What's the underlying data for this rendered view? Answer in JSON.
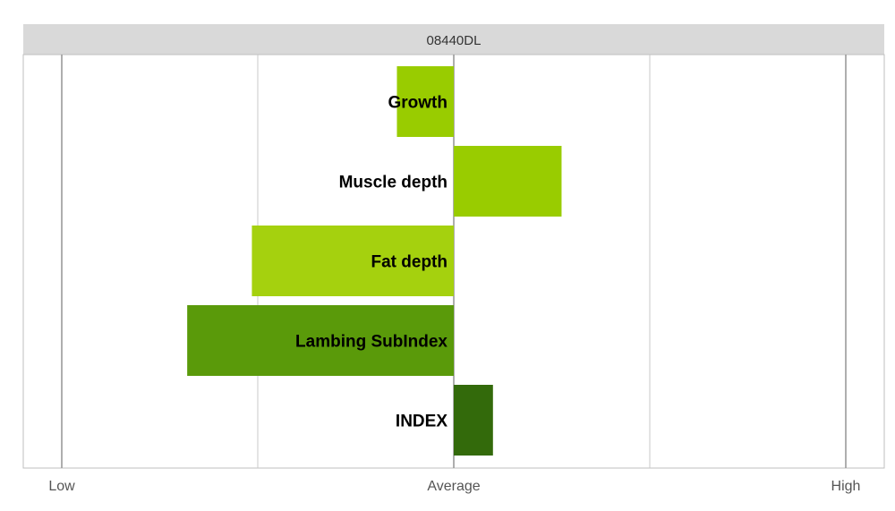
{
  "chart_data": {
    "type": "bar",
    "orientation": "horizontal",
    "title": "08440DL",
    "categories": [
      "Growth",
      "Muscle depth",
      "Fat depth",
      "Lambing SubIndex",
      "INDEX"
    ],
    "values": [
      -0.29,
      0.55,
      -1.03,
      -1.36,
      0.2
    ],
    "xlim": [
      -2,
      2
    ],
    "x_tick_values": [
      -2,
      0,
      2
    ],
    "x_tick_labels": [
      "Low",
      "Average",
      "High"
    ],
    "grid": true,
    "legend": "none"
  },
  "colors": {
    "title_band": "#d9d9d9",
    "bars": [
      "#99cc00",
      "#99cc00",
      "#a5d10e",
      "#5a9a0a",
      "#336a0b"
    ],
    "axis": "#999999"
  }
}
